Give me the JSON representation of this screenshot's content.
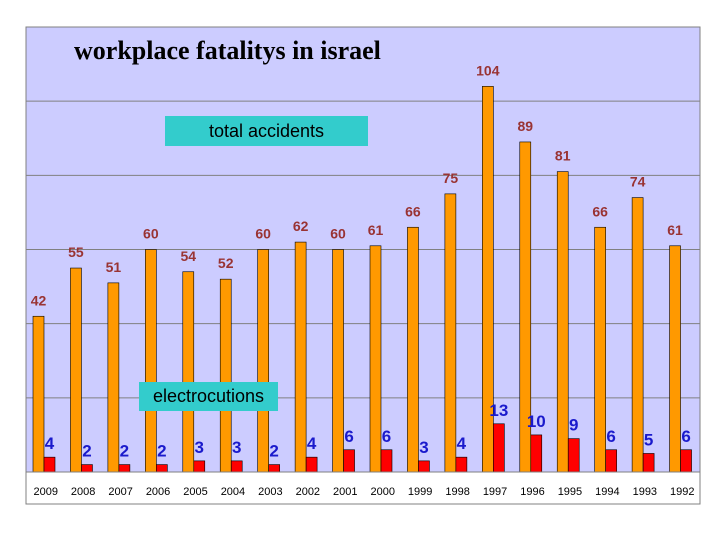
{
  "chart_data": {
    "type": "bar",
    "title": "workplace fatalitys in israel",
    "categories": [
      "2009",
      "2008",
      "2007",
      "2006",
      "2005",
      "2004",
      "2003",
      "2002",
      "2001",
      "2000",
      "1999",
      "1998",
      "1997",
      "1996",
      "1995",
      "1994",
      "1993",
      "1992"
    ],
    "series": [
      {
        "name": "total accidents",
        "values": [
          42,
          55,
          51,
          60,
          54,
          52,
          60,
          62,
          60,
          61,
          66,
          75,
          104,
          89,
          81,
          66,
          74,
          61
        ],
        "color": "#ff9900",
        "label_color": "#993333"
      },
      {
        "name": "electrocutions",
        "values": [
          4,
          2,
          2,
          2,
          3,
          3,
          2,
          4,
          6,
          6,
          3,
          4,
          13,
          10,
          9,
          6,
          5,
          6
        ],
        "color": "#ff0000",
        "label_color": "#1a1acc"
      }
    ],
    "xlabel": "",
    "ylabel": "",
    "ylim": [
      0,
      120
    ],
    "grid": true,
    "plot_background": "#ccccff"
  }
}
